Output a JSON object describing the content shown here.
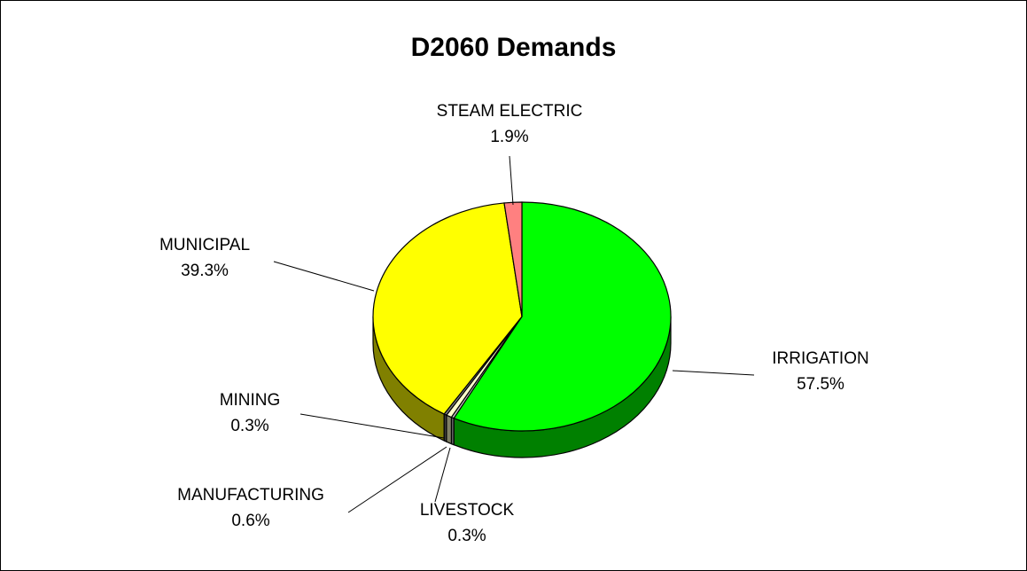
{
  "chart_data": {
    "type": "pie",
    "title": "D2060 Demands",
    "slices": [
      {
        "name": "IRRIGATION",
        "value": 57.5,
        "percent_label": "57.5%",
        "color": "#00FF00",
        "side_color": "#008000"
      },
      {
        "name": "LIVESTOCK",
        "value": 0.3,
        "percent_label": "0.3%",
        "color": "#C0C0C0",
        "side_color": "#606060"
      },
      {
        "name": "MANUFACTURING",
        "value": 0.6,
        "percent_label": "0.6%",
        "color": "#FFFFCC",
        "side_color": "#808066"
      },
      {
        "name": "MINING",
        "value": 0.3,
        "percent_label": "0.3%",
        "color": "#808080",
        "side_color": "#404040"
      },
      {
        "name": "MUNICIPAL",
        "value": 39.3,
        "percent_label": "39.3%",
        "color": "#FFFF00",
        "side_color": "#808000"
      },
      {
        "name": "STEAM ELECTRIC",
        "value": 1.9,
        "percent_label": "1.9%",
        "color": "#FF8080",
        "side_color": "#804040"
      }
    ],
    "start_angle": "12 o'clock",
    "direction": "clockwise",
    "style": "3d"
  }
}
